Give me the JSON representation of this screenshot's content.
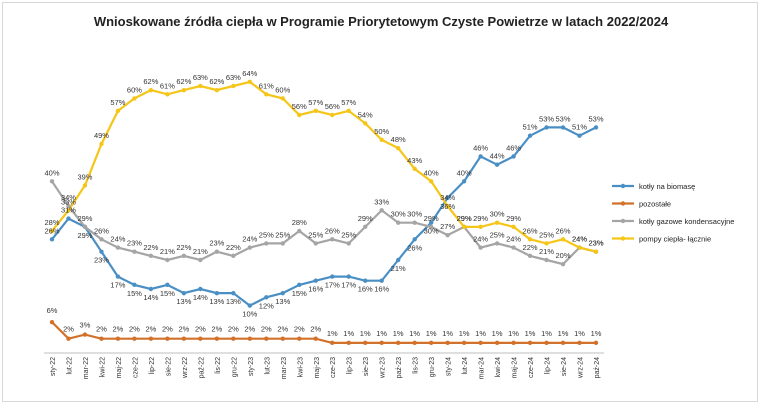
{
  "chart_data": {
    "type": "line",
    "title": "Wnioskowane źródła ciepła w Programie Priorytetowym Czyste Powietrze w latach 2022/2024",
    "xlabel": "",
    "ylabel": "",
    "ylim": [
      0,
      70
    ],
    "legend_position": "right",
    "categories": [
      "sty-22",
      "lut-22",
      "mar-22",
      "kwi-22",
      "maj-22",
      "cze-22",
      "lip-22",
      "sie-22",
      "wrz-22",
      "paź-22",
      "lis-22",
      "gru-22",
      "sty-23",
      "lut-23",
      "mar-23",
      "kwi-23",
      "maj-23",
      "cze-23",
      "lip-23",
      "sie-23",
      "wrz-23",
      "paź-23",
      "lis-23",
      "gru-23",
      "sty-24",
      "lut-24",
      "mar-24",
      "kwi-24",
      "maj-24",
      "cze-24",
      "lip-24",
      "sie-24",
      "wrz-24",
      "paź-24"
    ],
    "series": [
      {
        "name": "kotły na biomasę",
        "color": "#4a8fc4",
        "values": [
          26,
          31,
          29,
          23,
          17,
          15,
          14,
          15,
          13,
          14,
          13,
          13,
          10,
          12,
          13,
          15,
          16,
          17,
          17,
          16,
          16,
          21,
          26,
          30,
          36,
          40,
          46,
          44,
          46,
          51,
          53,
          53,
          51,
          53
        ]
      },
      {
        "name": "pozostałe",
        "color": "#d2722a",
        "values": [
          6,
          2,
          3,
          2,
          2,
          2,
          2,
          2,
          2,
          2,
          2,
          2,
          2,
          2,
          2,
          2,
          2,
          1,
          1,
          1,
          1,
          1,
          1,
          1,
          1,
          1,
          1,
          1,
          1,
          1,
          1,
          1,
          1,
          1
        ]
      },
      {
        "name": "kotły gazowe kondensacyjne",
        "color": "#a5a5a5",
        "values": [
          40,
          34,
          29,
          26,
          24,
          23,
          22,
          21,
          22,
          21,
          23,
          22,
          24,
          25,
          25,
          28,
          25,
          26,
          25,
          29,
          33,
          30,
          30,
          29,
          27,
          29,
          24,
          25,
          24,
          22,
          21,
          20,
          24,
          23
        ]
      },
      {
        "name": "pompy ciepła- łącznie",
        "color": "#f5c518",
        "values": [
          28,
          33,
          39,
          49,
          57,
          60,
          62,
          61,
          62,
          63,
          62,
          63,
          64,
          61,
          60,
          56,
          57,
          56,
          57,
          54,
          50,
          48,
          43,
          40,
          34,
          29,
          29,
          30,
          29,
          26,
          25,
          26,
          24,
          23
        ]
      }
    ]
  }
}
